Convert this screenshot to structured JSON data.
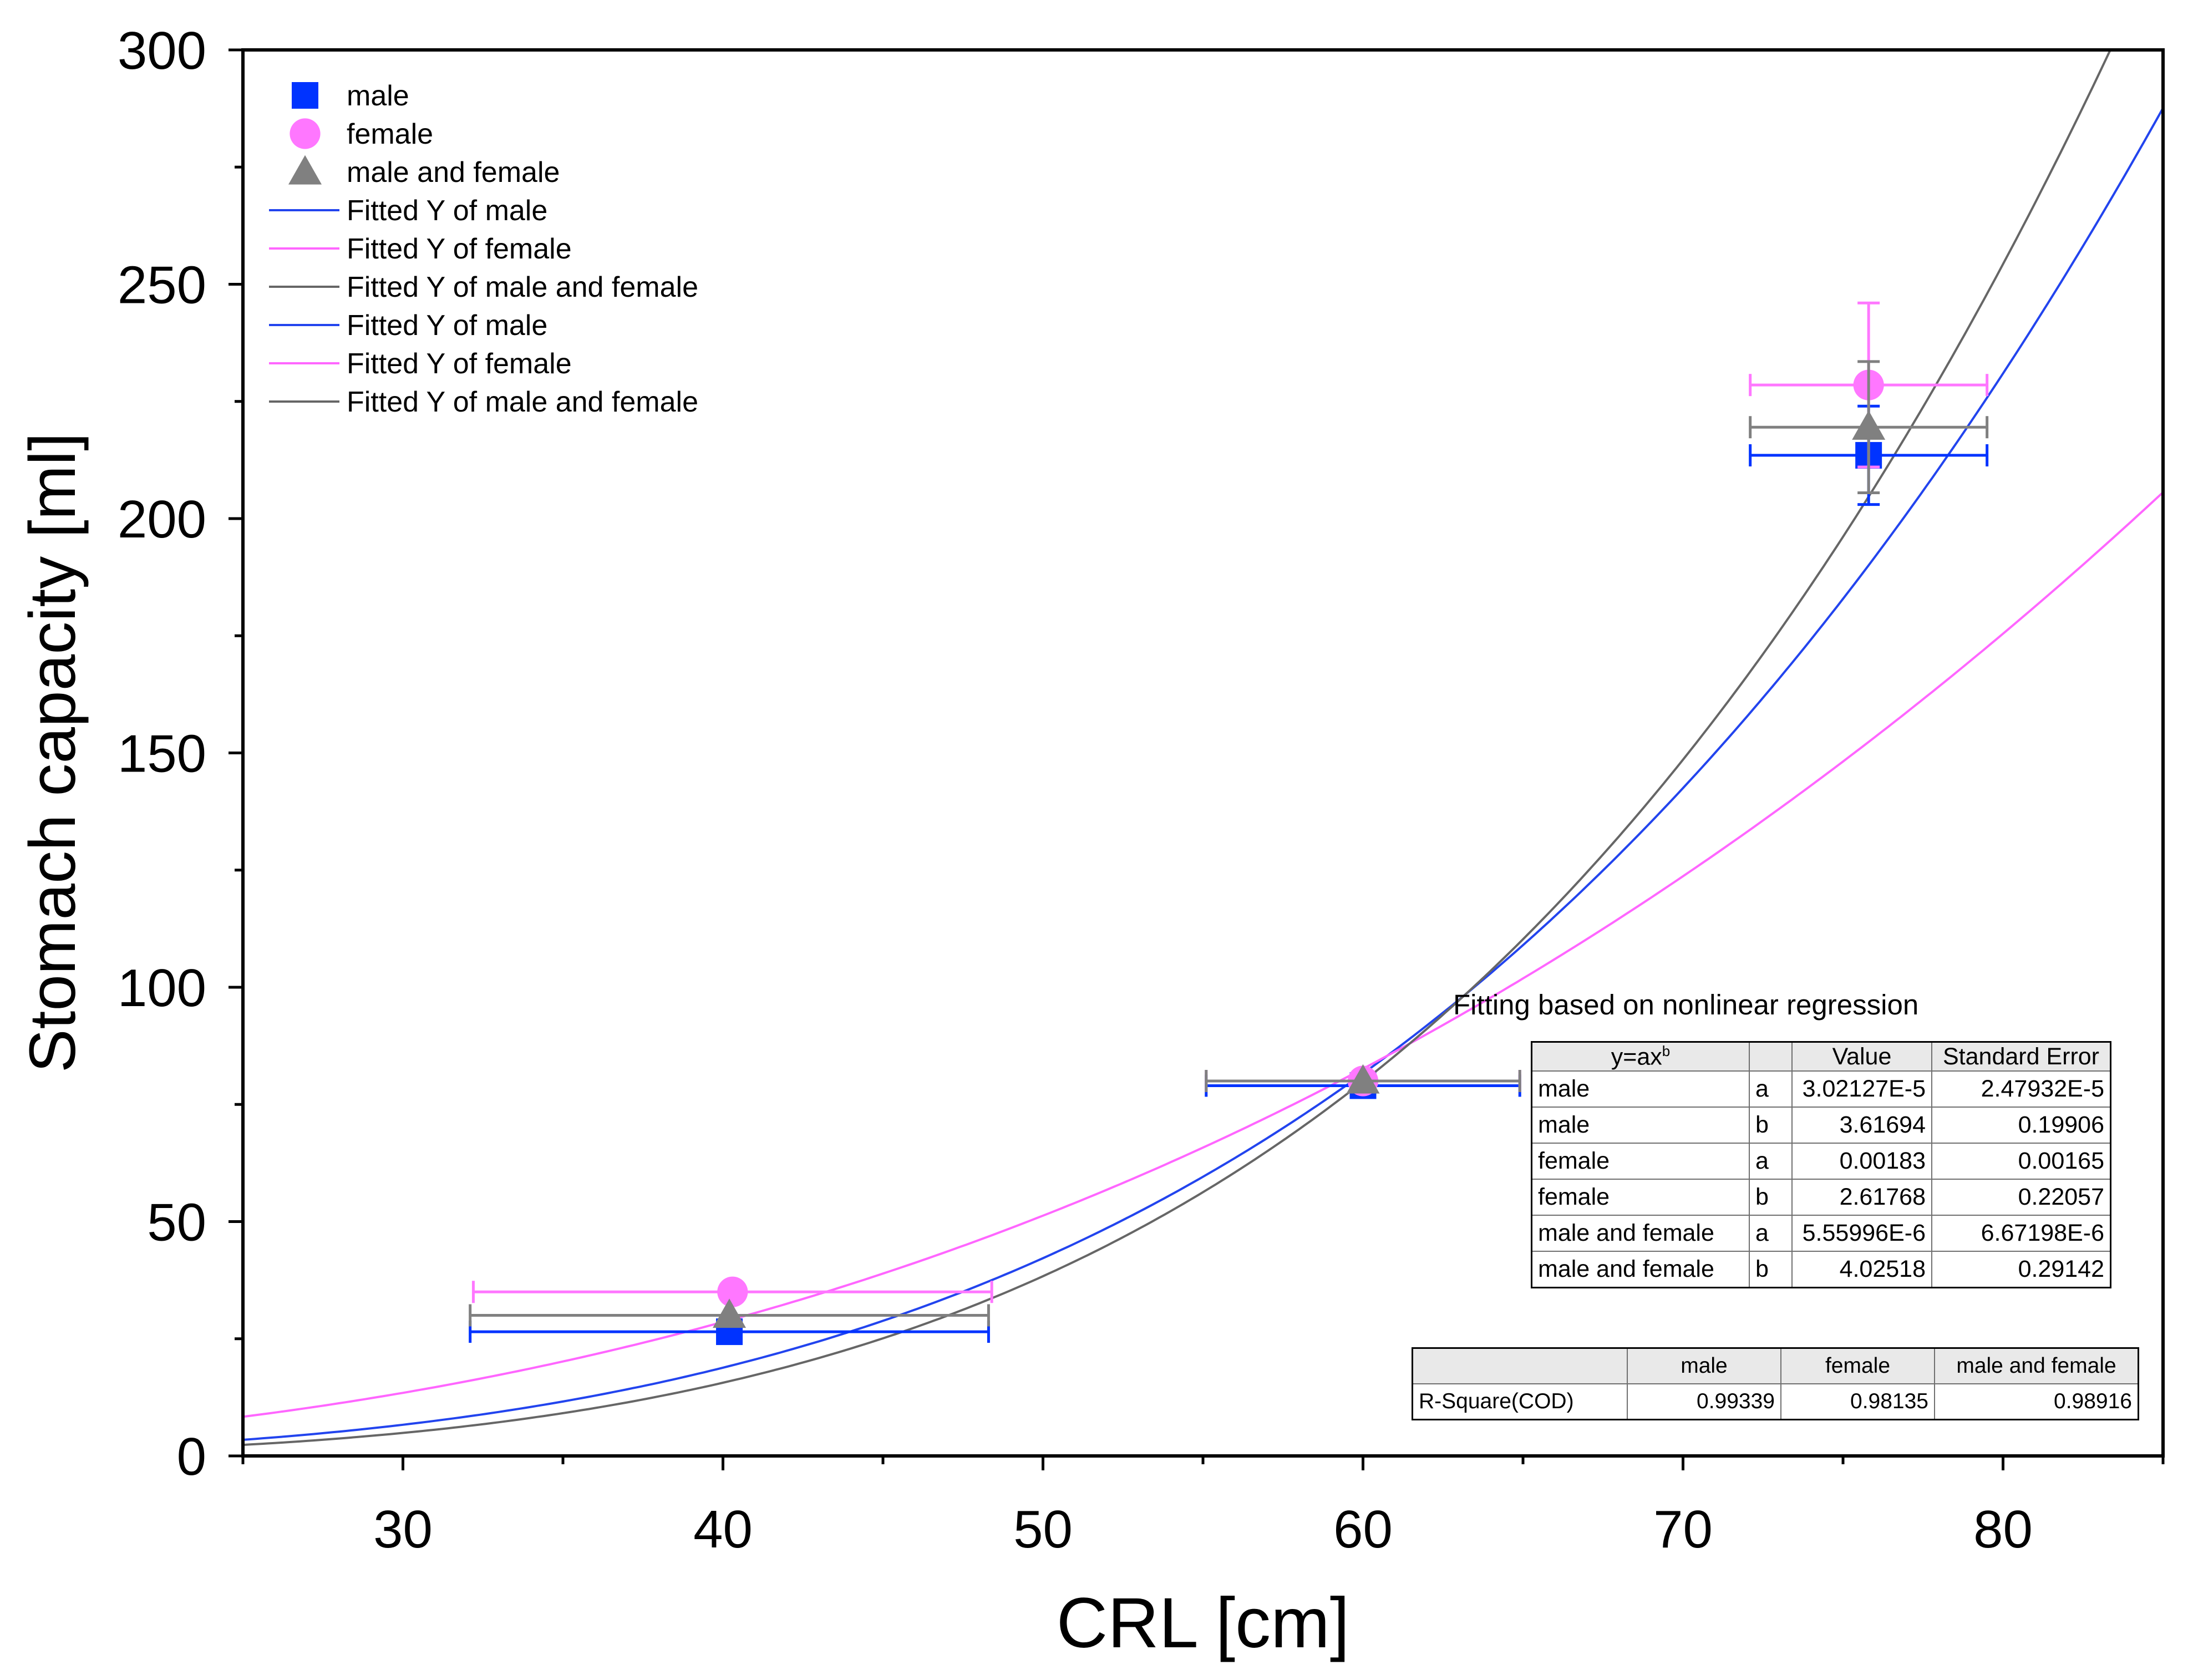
{
  "chart_data": {
    "type": "scatter",
    "title": "",
    "xlabel": "CRL [cm]",
    "ylabel": "Stomach capacity [ml]",
    "xlim": [
      25,
      85
    ],
    "ylim": [
      0,
      300
    ],
    "xticks": [
      30,
      40,
      50,
      60,
      70,
      80
    ],
    "yticks": [
      0,
      50,
      100,
      150,
      200,
      250,
      300
    ],
    "xtick_labels": [
      "30",
      "40",
      "50",
      "60",
      "70",
      "80"
    ],
    "ytick_labels": [
      "0",
      "50",
      "100",
      "150",
      "200",
      "250",
      "300"
    ],
    "legend_position": "top-left",
    "series": [
      {
        "name": "male",
        "marker": "square",
        "color": "#0033ff",
        "x": [
          40.2,
          60.0,
          75.8
        ],
        "y": [
          26.5,
          79.0,
          213.5
        ],
        "xerr": [
          8.1,
          4.9,
          3.7
        ],
        "yerr": [
          0,
          0,
          10.5
        ]
      },
      {
        "name": "female",
        "marker": "circle",
        "color": "#ff77ff",
        "x": [
          40.3,
          60.0,
          75.8
        ],
        "y": [
          35.0,
          80.0,
          228.5
        ],
        "xerr": [
          8.1,
          4.9,
          3.7
        ],
        "yerr": [
          0,
          0,
          17.5
        ]
      },
      {
        "name": "male and female",
        "marker": "triangle",
        "color": "#808080",
        "x": [
          40.2,
          60.0,
          75.8
        ],
        "y": [
          30.0,
          80.0,
          219.5
        ],
        "xerr": [
          8.1,
          4.9,
          3.7
        ],
        "yerr": [
          0,
          0,
          14.0
        ]
      }
    ],
    "fits": [
      {
        "name": "Fitted Y of male",
        "color": "#2244ee",
        "a": 3.02127e-05,
        "b": 3.61694
      },
      {
        "name": "Fitted Y of female",
        "color": "#ff66ff",
        "a": 0.00183,
        "b": 2.61768
      },
      {
        "name": "Fitted Y of male and female",
        "color": "#666666",
        "a": 5.55996e-06,
        "b": 4.02518
      }
    ],
    "legend": [
      {
        "label": "male",
        "kind": "square",
        "color": "#0033ff"
      },
      {
        "label": "female",
        "kind": "circle",
        "color": "#ff77ff"
      },
      {
        "label": "male and female",
        "kind": "triangle",
        "color": "#808080"
      },
      {
        "label": "Fitted Y  of male",
        "kind": "line",
        "color": "#2244ee"
      },
      {
        "label": "Fitted Y  of female",
        "kind": "line",
        "color": "#ff66ff"
      },
      {
        "label": "Fitted Y  of male and female",
        "kind": "line",
        "color": "#666666"
      },
      {
        "label": "Fitted Y  of male",
        "kind": "line",
        "color": "#2244ee"
      },
      {
        "label": "Fitted Y  of female",
        "kind": "line",
        "color": "#ff66ff"
      },
      {
        "label": "Fitted Y  of male and female",
        "kind": "line",
        "color": "#666666"
      }
    ]
  },
  "fit_table": {
    "title": "Fitting based on nonlinear regression",
    "header": {
      "model": "y=ax",
      "model_sup": "b",
      "param": "",
      "value": "Value",
      "stderr": "Standard Error"
    },
    "rows": [
      {
        "group": "male",
        "param": "a",
        "value": "3.02127E-5",
        "stderr": "2.47932E-5"
      },
      {
        "group": "male",
        "param": "b",
        "value": "3.61694",
        "stderr": "0.19906"
      },
      {
        "group": "female",
        "param": "a",
        "value": "0.00183",
        "stderr": "0.00165"
      },
      {
        "group": "female",
        "param": "b",
        "value": "2.61768",
        "stderr": "0.22057"
      },
      {
        "group": "male and female",
        "param": "a",
        "value": "5.55996E-6",
        "stderr": "6.67198E-6"
      },
      {
        "group": "male and female",
        "param": "b",
        "value": "4.02518",
        "stderr": "0.29142"
      }
    ]
  },
  "rsq_table": {
    "headers": [
      "",
      "male",
      "female",
      "male and female"
    ],
    "row_label": "R-Square(COD)",
    "values": [
      "0.99339",
      "0.98135",
      "0.98916"
    ]
  }
}
